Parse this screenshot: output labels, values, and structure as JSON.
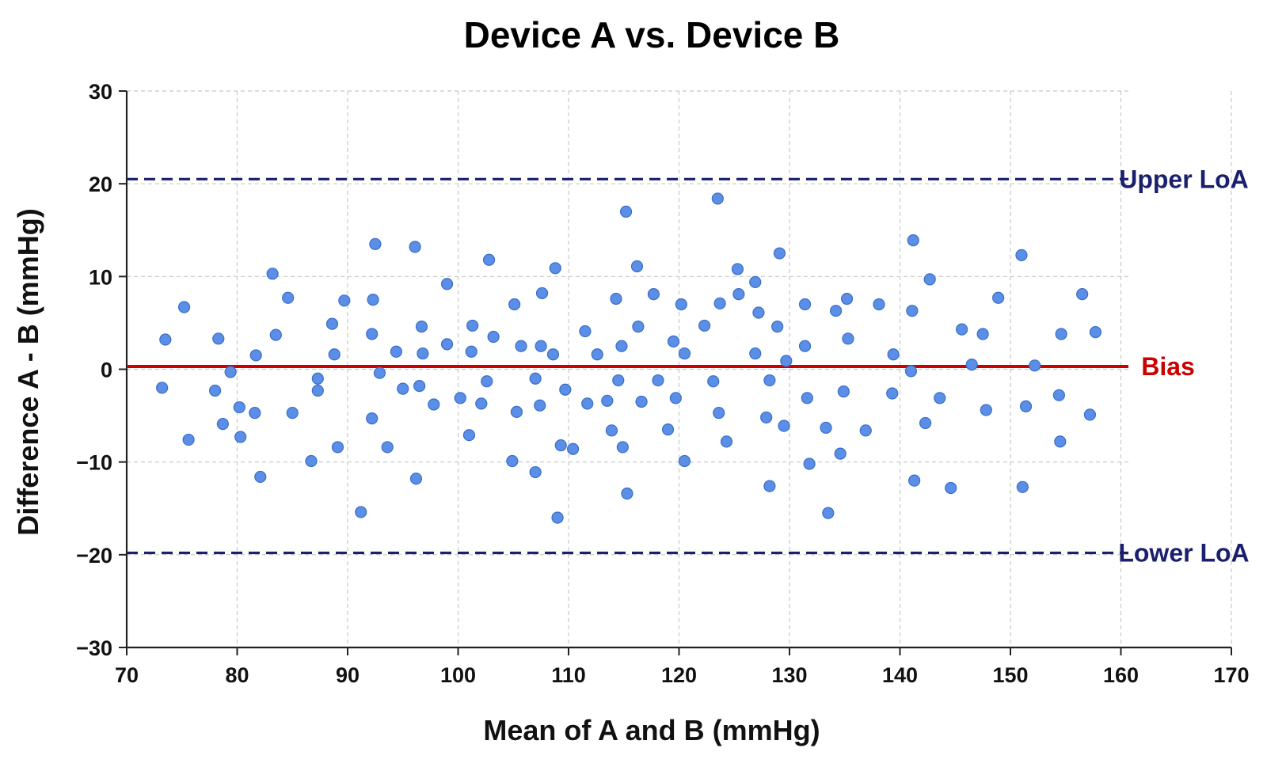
{
  "chart_data": {
    "type": "scatter",
    "title": "Device A vs. Device B",
    "xlabel": "Mean of A and B (mmHg)",
    "ylabel": "Difference A - B (mmHg)",
    "xlim": [
      70,
      170
    ],
    "ylim": [
      -30,
      30
    ],
    "xticks": [
      70,
      80,
      90,
      100,
      110,
      120,
      130,
      140,
      150,
      160,
      170
    ],
    "yticks": [
      -30,
      -20,
      -10,
      0,
      10,
      20,
      30
    ],
    "xtick_labels": [
      "70",
      "80",
      "90",
      "100",
      "110",
      "120",
      "130",
      "140",
      "150",
      "160",
      "170"
    ],
    "ytick_labels": [
      "−30",
      "−20",
      "−10",
      "0",
      "10",
      "20",
      "30"
    ],
    "grid": true,
    "reference_lines": [
      {
        "label": "Upper LoA",
        "y": 20.5,
        "style": "dashed",
        "color": "#1a1f6e"
      },
      {
        "label": "Bias",
        "y": 0.3,
        "style": "solid",
        "color": "#cc0000"
      },
      {
        "label": "Lower LoA",
        "y": -19.8,
        "style": "dashed",
        "color": "#1a1f6e"
      }
    ],
    "point_color": "#5b8ee6",
    "points": [
      [
        73.2,
        -2.0
      ],
      [
        73.5,
        3.2
      ],
      [
        75.2,
        6.7
      ],
      [
        75.6,
        -7.6
      ],
      [
        78.0,
        -2.3
      ],
      [
        78.3,
        3.3
      ],
      [
        78.7,
        -5.9
      ],
      [
        79.4,
        -0.3
      ],
      [
        80.2,
        -4.1
      ],
      [
        80.3,
        -7.3
      ],
      [
        81.6,
        -4.7
      ],
      [
        81.7,
        1.5
      ],
      [
        82.1,
        -11.6
      ],
      [
        83.2,
        10.3
      ],
      [
        83.5,
        3.7
      ],
      [
        84.6,
        7.7
      ],
      [
        85.0,
        -4.7
      ],
      [
        86.7,
        -9.9
      ],
      [
        87.3,
        -1.0
      ],
      [
        87.3,
        -2.3
      ],
      [
        88.6,
        4.9
      ],
      [
        88.8,
        1.6
      ],
      [
        89.1,
        -8.4
      ],
      [
        89.7,
        7.4
      ],
      [
        91.2,
        -15.4
      ],
      [
        92.2,
        -5.3
      ],
      [
        92.2,
        3.8
      ],
      [
        92.3,
        7.5
      ],
      [
        92.5,
        13.5
      ],
      [
        92.9,
        -0.4
      ],
      [
        93.6,
        -8.4
      ],
      [
        94.4,
        1.9
      ],
      [
        95.0,
        -2.1
      ],
      [
        96.1,
        13.2
      ],
      [
        96.2,
        -11.8
      ],
      [
        96.5,
        -1.8
      ],
      [
        96.7,
        4.6
      ],
      [
        96.8,
        1.7
      ],
      [
        97.8,
        -3.8
      ],
      [
        99.0,
        2.7
      ],
      [
        99.0,
        9.2
      ],
      [
        100.2,
        -3.1
      ],
      [
        101.0,
        -7.1
      ],
      [
        101.2,
        1.9
      ],
      [
        101.3,
        4.7
      ],
      [
        102.1,
        -3.7
      ],
      [
        102.6,
        -1.3
      ],
      [
        102.8,
        11.8
      ],
      [
        103.2,
        3.5
      ],
      [
        104.9,
        -9.9
      ],
      [
        105.1,
        7.0
      ],
      [
        105.3,
        -4.6
      ],
      [
        105.7,
        2.5
      ],
      [
        107.0,
        -11.1
      ],
      [
        107.0,
        -1.0
      ],
      [
        107.4,
        -3.9
      ],
      [
        107.5,
        2.5
      ],
      [
        107.6,
        8.2
      ],
      [
        108.6,
        1.6
      ],
      [
        108.8,
        10.9
      ],
      [
        109.0,
        -16.0
      ],
      [
        109.3,
        -8.2
      ],
      [
        109.7,
        -2.2
      ],
      [
        110.4,
        -8.6
      ],
      [
        111.5,
        4.1
      ],
      [
        111.7,
        -3.7
      ],
      [
        112.6,
        1.6
      ],
      [
        113.5,
        -3.4
      ],
      [
        113.9,
        -6.6
      ],
      [
        114.3,
        7.6
      ],
      [
        114.5,
        -1.2
      ],
      [
        114.8,
        2.5
      ],
      [
        114.9,
        -8.4
      ],
      [
        115.2,
        17.0
      ],
      [
        115.3,
        -13.4
      ],
      [
        116.2,
        11.1
      ],
      [
        116.3,
        4.6
      ],
      [
        116.6,
        -3.5
      ],
      [
        117.7,
        8.1
      ],
      [
        118.1,
        -1.2
      ],
      [
        119.0,
        -6.5
      ],
      [
        119.5,
        3.0
      ],
      [
        119.7,
        -3.1
      ],
      [
        120.2,
        7.0
      ],
      [
        120.5,
        1.7
      ],
      [
        120.5,
        -9.9
      ],
      [
        122.3,
        4.7
      ],
      [
        123.1,
        -1.3
      ],
      [
        123.5,
        18.4
      ],
      [
        123.6,
        -4.7
      ],
      [
        123.7,
        7.1
      ],
      [
        124.3,
        -7.8
      ],
      [
        125.3,
        10.8
      ],
      [
        125.4,
        8.1
      ],
      [
        126.9,
        1.7
      ],
      [
        126.9,
        9.4
      ],
      [
        127.2,
        6.1
      ],
      [
        127.9,
        -5.2
      ],
      [
        128.2,
        -12.6
      ],
      [
        128.2,
        -1.2
      ],
      [
        128.9,
        4.6
      ],
      [
        129.1,
        12.5
      ],
      [
        129.5,
        -6.1
      ],
      [
        129.7,
        0.9
      ],
      [
        131.4,
        7.0
      ],
      [
        131.4,
        2.5
      ],
      [
        131.6,
        -3.1
      ],
      [
        131.8,
        -10.2
      ],
      [
        133.3,
        -6.3
      ],
      [
        133.5,
        -15.5
      ],
      [
        134.2,
        6.3
      ],
      [
        134.6,
        -9.1
      ],
      [
        134.9,
        -2.4
      ],
      [
        135.2,
        7.6
      ],
      [
        135.3,
        3.3
      ],
      [
        136.9,
        -6.6
      ],
      [
        138.1,
        7.0
      ],
      [
        139.3,
        -2.6
      ],
      [
        139.4,
        1.6
      ],
      [
        141.0,
        -0.2
      ],
      [
        141.1,
        6.3
      ],
      [
        141.2,
        13.9
      ],
      [
        141.3,
        -12.0
      ],
      [
        142.3,
        -5.8
      ],
      [
        142.7,
        9.7
      ],
      [
        143.6,
        -3.1
      ],
      [
        144.6,
        -12.8
      ],
      [
        145.6,
        4.3
      ],
      [
        146.5,
        0.5
      ],
      [
        147.5,
        3.8
      ],
      [
        147.8,
        -4.4
      ],
      [
        148.9,
        7.7
      ],
      [
        151.0,
        12.3
      ],
      [
        151.1,
        -12.7
      ],
      [
        151.4,
        -4.0
      ],
      [
        152.2,
        0.4
      ],
      [
        154.4,
        -2.8
      ],
      [
        154.5,
        -7.8
      ],
      [
        154.6,
        3.8
      ],
      [
        156.5,
        8.1
      ],
      [
        157.2,
        -4.9
      ],
      [
        157.7,
        4.0
      ]
    ]
  }
}
